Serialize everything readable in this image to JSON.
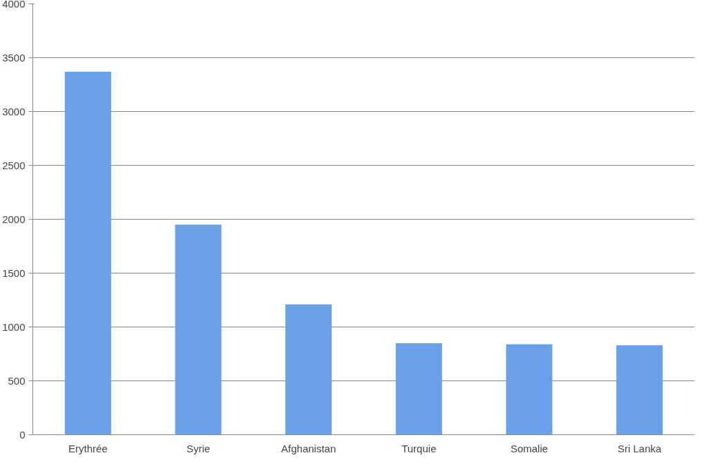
{
  "chart_data": {
    "type": "bar",
    "categories": [
      "Erythrée",
      "Syrie",
      "Afghanistan",
      "Turquie",
      "Somalie",
      "Sri Lanka"
    ],
    "values": [
      3370,
      1950,
      1210,
      850,
      840,
      830
    ],
    "color": "#6aa0e8",
    "ylim": [
      0,
      4000
    ],
    "yticks": [
      0,
      500,
      1000,
      1500,
      2000,
      2500,
      3000,
      3500,
      4000
    ],
    "grid": "y"
  }
}
